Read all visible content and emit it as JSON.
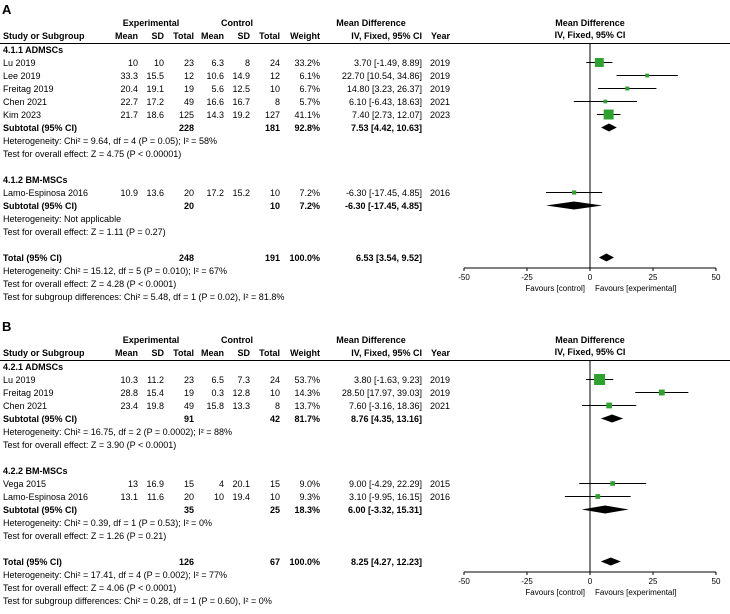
{
  "figure": {
    "colors": {
      "marker": "#2EA22E",
      "diamond": "#000000",
      "line": "#000000"
    }
  },
  "chart_data": [
    {
      "type": "forest",
      "panel_label": "A",
      "headers": {
        "group1": "Experimental",
        "group2": "Control",
        "effect": "Mean Difference",
        "study": "Study or Subgroup",
        "mean": "Mean",
        "sd": "SD",
        "total": "Total",
        "weight": "Weight",
        "method": "IV, Fixed, 95% CI",
        "year": "Year",
        "plot_title": "Mean Difference",
        "plot_subtitle": "IV, Fixed, 95% CI"
      },
      "axis": {
        "min": -50,
        "max": 50,
        "ticks": [
          -50,
          -25,
          0,
          25,
          50
        ],
        "left_label": "Favours [control]",
        "right_label": "Favours [experimental]"
      },
      "subgroups": [
        {
          "name": "4.1.1 ADMSCs",
          "studies": [
            {
              "study": "Lu 2019",
              "exp_mean": "10",
              "exp_sd": "10",
              "exp_total": "23",
              "ctl_mean": "6.3",
              "ctl_sd": "8",
              "ctl_total": "24",
              "weight": "33.2%",
              "estimate": "3.70 [-1.49, 8.89]",
              "year": "2019",
              "md": 3.7,
              "lcl": -1.49,
              "ucl": 8.89,
              "weight_pct": 33.2
            },
            {
              "study": "Lee 2019",
              "exp_mean": "33.3",
              "exp_sd": "15.5",
              "exp_total": "12",
              "ctl_mean": "10.6",
              "ctl_sd": "14.9",
              "ctl_total": "12",
              "weight": "6.1%",
              "estimate": "22.70 [10.54, 34.86]",
              "year": "2019",
              "md": 22.7,
              "lcl": 10.54,
              "ucl": 34.86,
              "weight_pct": 6.1
            },
            {
              "study": "Freitag 2019",
              "exp_mean": "20.4",
              "exp_sd": "19.1",
              "exp_total": "19",
              "ctl_mean": "5.6",
              "ctl_sd": "12.5",
              "ctl_total": "10",
              "weight": "6.7%",
              "estimate": "14.80 [3.23, 26.37]",
              "year": "2019",
              "md": 14.8,
              "lcl": 3.23,
              "ucl": 26.37,
              "weight_pct": 6.7
            },
            {
              "study": "Chen 2021",
              "exp_mean": "22.7",
              "exp_sd": "17.2",
              "exp_total": "49",
              "ctl_mean": "16.6",
              "ctl_sd": "16.7",
              "ctl_total": "8",
              "weight": "5.7%",
              "estimate": "6.10 [-6.43, 18.63]",
              "year": "2021",
              "md": 6.1,
              "lcl": -6.43,
              "ucl": 18.63,
              "weight_pct": 5.7
            },
            {
              "study": "Kim 2023",
              "exp_mean": "21.7",
              "exp_sd": "18.6",
              "exp_total": "125",
              "ctl_mean": "14.3",
              "ctl_sd": "19.2",
              "ctl_total": "127",
              "weight": "41.1%",
              "estimate": "7.40 [2.73, 12.07]",
              "year": "2023",
              "md": 7.4,
              "lcl": 2.73,
              "ucl": 12.07,
              "weight_pct": 41.1
            }
          ],
          "subtotal": {
            "label": "Subtotal (95% CI)",
            "exp_total": "228",
            "ctl_total": "181",
            "weight": "92.8%",
            "estimate": "7.53 [4.42, 10.63]",
            "md": 7.53,
            "lcl": 4.42,
            "ucl": 10.63
          },
          "heterogeneity": "Heterogeneity: Chi² = 9.64, df = 4 (P = 0.05); I² = 58%",
          "overall_effect": "Test for overall effect: Z = 4.75 (P < 0.00001)"
        },
        {
          "name": "4.1.2 BM-MSCs",
          "studies": [
            {
              "study": "Lamo-Espinosa 2016",
              "exp_mean": "10.9",
              "exp_sd": "13.6",
              "exp_total": "20",
              "ctl_mean": "17.2",
              "ctl_sd": "15.2",
              "ctl_total": "10",
              "weight": "7.2%",
              "estimate": "-6.30 [-17.45, 4.85]",
              "year": "2016",
              "md": -6.3,
              "lcl": -17.45,
              "ucl": 4.85,
              "weight_pct": 7.2
            }
          ],
          "subtotal": {
            "label": "Subtotal (95% CI)",
            "exp_total": "20",
            "ctl_total": "10",
            "weight": "7.2%",
            "estimate": "-6.30 [-17.45, 4.85]",
            "md": -6.3,
            "lcl": -17.45,
            "ucl": 4.85
          },
          "heterogeneity": "Heterogeneity: Not applicable",
          "overall_effect": "Test for overall effect: Z = 1.11 (P = 0.27)"
        }
      ],
      "total": {
        "label": "Total (95% CI)",
        "exp_total": "248",
        "ctl_total": "191",
        "weight": "100.0%",
        "estimate": "6.53 [3.54, 9.52]",
        "md": 6.53,
        "lcl": 3.54,
        "ucl": 9.52
      },
      "footnotes": [
        "Heterogeneity: Chi² = 15.12, df = 5 (P = 0.010); I² = 67%",
        "Test for overall effect: Z = 4.28 (P < 0.0001)",
        "Test for subgroup differences: Chi² = 5.48, df = 1 (P = 0.02), I² = 81.8%"
      ]
    },
    {
      "type": "forest",
      "panel_label": "B",
      "headers": {
        "group1": "Experimental",
        "group2": "Control",
        "effect": "Mean Difference",
        "study": "Study or Subgroup",
        "mean": "Mean",
        "sd": "SD",
        "total": "Total",
        "weight": "Weight",
        "method": "IV, Fixed, 95% CI",
        "year": "Year",
        "plot_title": "Mean Difference",
        "plot_subtitle": "IV, Fixed, 95% CI"
      },
      "axis": {
        "min": -50,
        "max": 50,
        "ticks": [
          -50,
          -25,
          0,
          25,
          50
        ],
        "left_label": "Favours [control]",
        "right_label": "Favours [experimental]"
      },
      "subgroups": [
        {
          "name": "4.2.1 ADMSCs",
          "studies": [
            {
              "study": "Lu 2019",
              "exp_mean": "10.3",
              "exp_sd": "11.2",
              "exp_total": "23",
              "ctl_mean": "6.5",
              "ctl_sd": "7.3",
              "ctl_total": "24",
              "weight": "53.7%",
              "estimate": "3.80 [-1.63, 9.23]",
              "year": "2019",
              "md": 3.8,
              "lcl": -1.63,
              "ucl": 9.23,
              "weight_pct": 53.7
            },
            {
              "study": "Freitag 2019",
              "exp_mean": "28.8",
              "exp_sd": "15.4",
              "exp_total": "19",
              "ctl_mean": "0.3",
              "ctl_sd": "12.8",
              "ctl_total": "10",
              "weight": "14.3%",
              "estimate": "28.50 [17.97, 39.03]",
              "year": "2019",
              "md": 28.5,
              "lcl": 17.97,
              "ucl": 39.03,
              "weight_pct": 14.3
            },
            {
              "study": "Chen 2021",
              "exp_mean": "23.4",
              "exp_sd": "19.8",
              "exp_total": "49",
              "ctl_mean": "15.8",
              "ctl_sd": "13.3",
              "ctl_total": "8",
              "weight": "13.7%",
              "estimate": "7.60 [-3.16, 18.36]",
              "year": "2021",
              "md": 7.6,
              "lcl": -3.16,
              "ucl": 18.36,
              "weight_pct": 13.7
            }
          ],
          "subtotal": {
            "label": "Subtotal (95% CI)",
            "exp_total": "91",
            "ctl_total": "42",
            "weight": "81.7%",
            "estimate": "8.76 [4.35, 13.16]",
            "md": 8.76,
            "lcl": 4.35,
            "ucl": 13.16
          },
          "heterogeneity": "Heterogeneity: Chi² = 16.75, df = 2 (P = 0.0002); I² = 88%",
          "overall_effect": "Test for overall effect: Z = 3.90 (P < 0.0001)"
        },
        {
          "name": "4.2.2 BM-MSCs",
          "studies": [
            {
              "study": "Vega 2015",
              "exp_mean": "13",
              "exp_sd": "16.9",
              "exp_total": "15",
              "ctl_mean": "4",
              "ctl_sd": "20.1",
              "ctl_total": "15",
              "weight": "9.0%",
              "estimate": "9.00 [-4.29, 22.29]",
              "year": "2015",
              "md": 9.0,
              "lcl": -4.29,
              "ucl": 22.29,
              "weight_pct": 9.0
            },
            {
              "study": "Lamo-Espinosa 2016",
              "exp_mean": "13.1",
              "exp_sd": "11.6",
              "exp_total": "20",
              "ctl_mean": "10",
              "ctl_sd": "19.4",
              "ctl_total": "10",
              "weight": "9.3%",
              "estimate": "3.10 [-9.95, 16.15]",
              "year": "2016",
              "md": 3.1,
              "lcl": -9.95,
              "ucl": 16.15,
              "weight_pct": 9.3
            }
          ],
          "subtotal": {
            "label": "Subtotal (95% CI)",
            "exp_total": "35",
            "ctl_total": "25",
            "weight": "18.3%",
            "estimate": "6.00 [-3.32, 15.31]",
            "md": 6.0,
            "lcl": -3.32,
            "ucl": 15.31
          },
          "heterogeneity": "Heterogeneity: Chi² = 0.39, df = 1 (P = 0.53); I² = 0%",
          "overall_effect": "Test for overall effect: Z = 1.26 (P = 0.21)"
        }
      ],
      "total": {
        "label": "Total (95% CI)",
        "exp_total": "126",
        "ctl_total": "67",
        "weight": "100.0%",
        "estimate": "8.25 [4.27, 12.23]",
        "md": 8.25,
        "lcl": 4.27,
        "ucl": 12.23
      },
      "footnotes": [
        "Heterogeneity: Chi² = 17.41, df = 4 (P = 0.002); I² = 77%",
        "Test for overall effect: Z = 4.06 (P < 0.0001)",
        "Test for subgroup differences: Chi² = 0.28, df = 1 (P = 0.60), I² = 0%"
      ]
    }
  ]
}
